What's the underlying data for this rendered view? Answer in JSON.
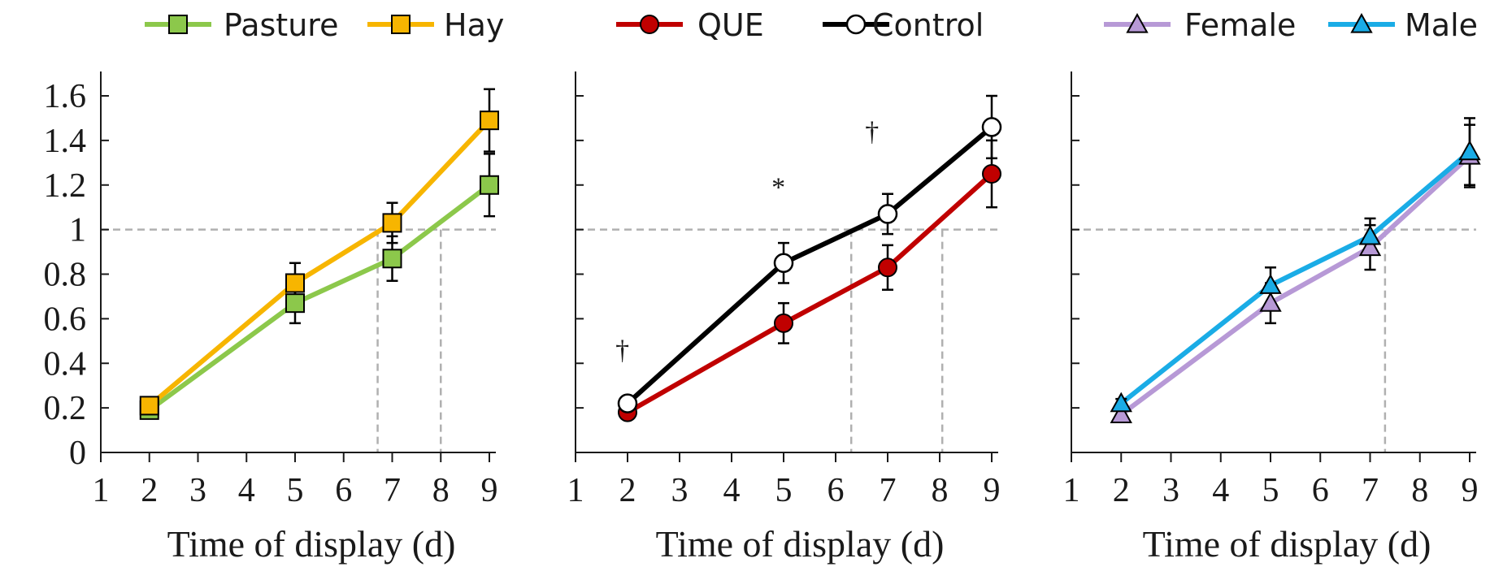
{
  "colors": {
    "pasture": "#8cc84b",
    "hay": "#f7b500",
    "que": "#c00000",
    "control": "#000000",
    "female": "#b799d6",
    "male": "#1aace6",
    "reference": "#b0b0b0",
    "axis": "#1a1a1a"
  },
  "chart_data": [
    {
      "type": "line",
      "title": "",
      "xlabel": "Time of display (d)",
      "ylabel": "",
      "xlim": [
        1,
        9
      ],
      "ylim": [
        0,
        1.6
      ],
      "x_ticks": [
        "1",
        "2",
        "3",
        "4",
        "5",
        "6",
        "7",
        "8",
        "9"
      ],
      "y_ticks": [
        "0",
        "0.2",
        "0.4",
        "0.6",
        "0.8",
        "1",
        "1.2",
        "1.4",
        "1.6"
      ],
      "reference_y": 1.0,
      "reference_x": [
        6.7,
        8.0
      ],
      "legend_position": "top",
      "x": [
        2,
        5,
        7,
        9
      ],
      "series": [
        {
          "name": "Pasture",
          "color_key": "pasture",
          "marker": "square",
          "values": [
            0.19,
            0.67,
            0.87,
            1.2
          ],
          "errors": [
            0.02,
            0.09,
            0.1,
            0.14
          ]
        },
        {
          "name": "Hay",
          "color_key": "hay",
          "marker": "square",
          "values": [
            0.21,
            0.76,
            1.03,
            1.49
          ],
          "errors": [
            0.02,
            0.09,
            0.09,
            0.14
          ]
        }
      ],
      "annotations": []
    },
    {
      "type": "line",
      "title": "",
      "xlabel": "Time of display (d)",
      "ylabel": "",
      "xlim": [
        1,
        9
      ],
      "ylim": [
        0,
        1.6
      ],
      "x_ticks": [
        "1",
        "2",
        "3",
        "4",
        "5",
        "6",
        "7",
        "8",
        "9"
      ],
      "y_ticks": [],
      "reference_y": 1.0,
      "reference_x": [
        6.3,
        8.05
      ],
      "legend_position": "top",
      "x": [
        2,
        5,
        7,
        9
      ],
      "series": [
        {
          "name": "QUE",
          "color_key": "que",
          "marker": "circle",
          "values": [
            0.18,
            0.58,
            0.83,
            1.25
          ],
          "errors": [
            0.02,
            0.09,
            0.1,
            0.15
          ]
        },
        {
          "name": "Control",
          "color_key": "control",
          "marker": "circle-open",
          "values": [
            0.22,
            0.85,
            1.07,
            1.46
          ],
          "errors": [
            0.02,
            0.09,
            0.09,
            0.14
          ]
        }
      ],
      "annotations": [
        {
          "x": 1.9,
          "y": 0.42,
          "text": "†"
        },
        {
          "x": 4.9,
          "y": 1.15,
          "text": "*"
        },
        {
          "x": 6.7,
          "y": 1.4,
          "text": "†"
        }
      ]
    },
    {
      "type": "line",
      "title": "",
      "xlabel": "Time of display (d)",
      "ylabel": "",
      "xlim": [
        1,
        9
      ],
      "ylim": [
        0,
        1.6
      ],
      "x_ticks": [
        "1",
        "2",
        "3",
        "4",
        "5",
        "6",
        "7",
        "8",
        "9"
      ],
      "y_ticks": [],
      "reference_y": 1.0,
      "reference_x": [
        7.3
      ],
      "legend_position": "top",
      "x": [
        2,
        5,
        7,
        9
      ],
      "series": [
        {
          "name": "Female",
          "color_key": "female",
          "marker": "triangle",
          "values": [
            0.17,
            0.67,
            0.92,
            1.33
          ],
          "errors": [
            0.02,
            0.09,
            0.1,
            0.14
          ]
        },
        {
          "name": "Male",
          "color_key": "male",
          "marker": "triangle",
          "values": [
            0.22,
            0.75,
            0.97,
            1.35
          ],
          "errors": [
            0.02,
            0.08,
            0.08,
            0.15
          ]
        }
      ],
      "annotations": []
    }
  ]
}
